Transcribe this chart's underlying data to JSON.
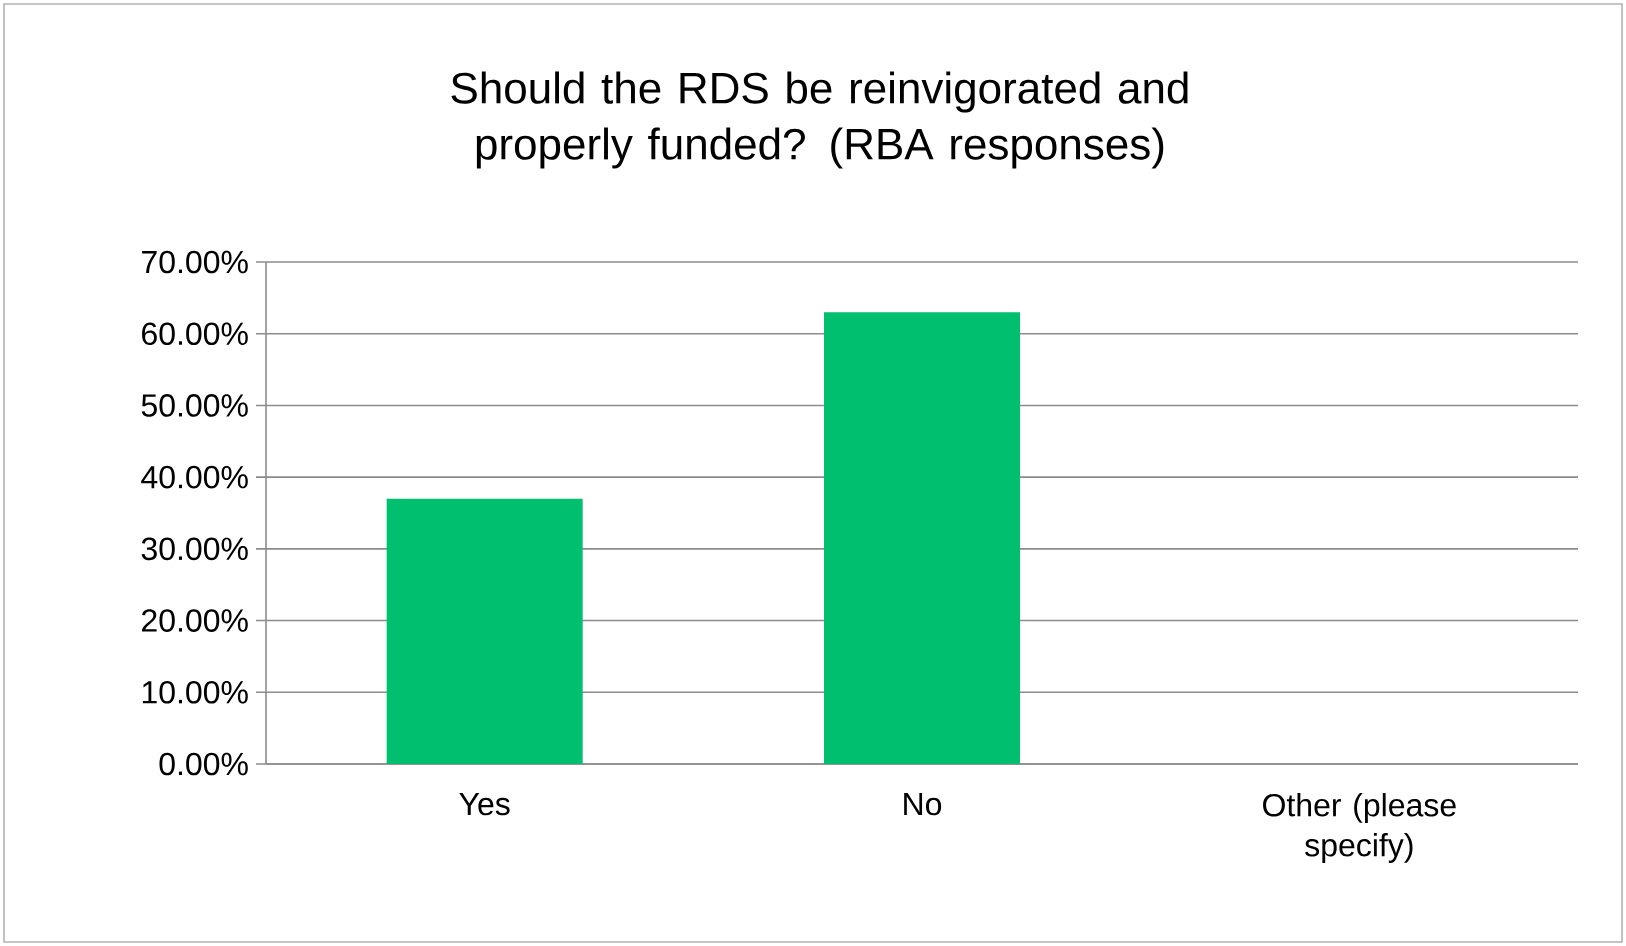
{
  "chart_data": {
    "type": "bar",
    "title": "Should the RDS be reinvigorated and properly funded? (RBA responses)",
    "categories": [
      "Yes",
      "No",
      "Other (please specify)"
    ],
    "values": [
      37,
      63,
      0
    ],
    "color": "#00bf6f",
    "ylim": [
      0,
      70
    ],
    "yticks": [
      {
        "value": 0,
        "label": "0.00%"
      },
      {
        "value": 10,
        "label": "10.00%"
      },
      {
        "value": 20,
        "label": "20.00%"
      },
      {
        "value": 30,
        "label": "30.00%"
      },
      {
        "value": 40,
        "label": "40.00%"
      },
      {
        "value": 50,
        "label": "50.00%"
      },
      {
        "value": 60,
        "label": "60.00%"
      },
      {
        "value": 70,
        "label": "70.00%"
      }
    ],
    "grid": "y"
  }
}
